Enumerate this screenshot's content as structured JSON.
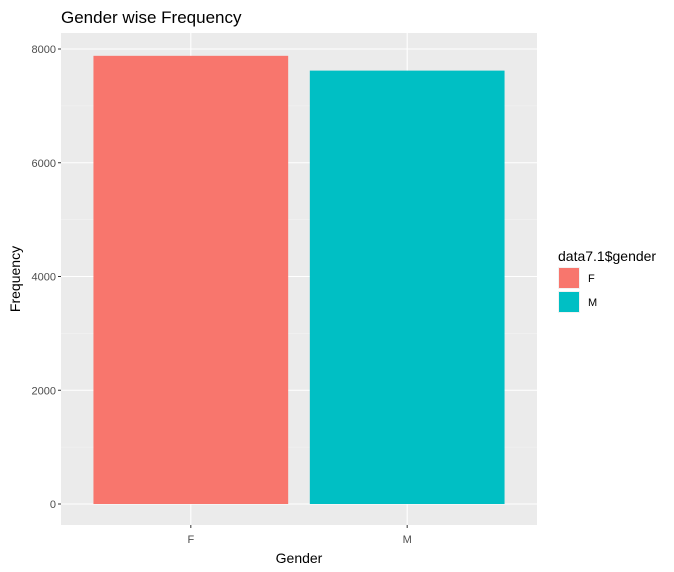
{
  "chart_data": {
    "type": "bar",
    "title": "Gender wise Frequency",
    "xlabel": "Gender",
    "ylabel": "Frequency",
    "categories": [
      "F",
      "M"
    ],
    "values": [
      7880,
      7620
    ],
    "colors": [
      "#F8766D",
      "#00BFC4"
    ],
    "ylim": [
      0,
      8100
    ],
    "yticks": [
      0,
      2000,
      4000,
      6000,
      8000
    ],
    "grid": true,
    "panel_background": "#EBEBEB",
    "legend": {
      "title": "data7.1$gender",
      "entries": [
        "F",
        "M"
      ],
      "position": "right"
    }
  }
}
